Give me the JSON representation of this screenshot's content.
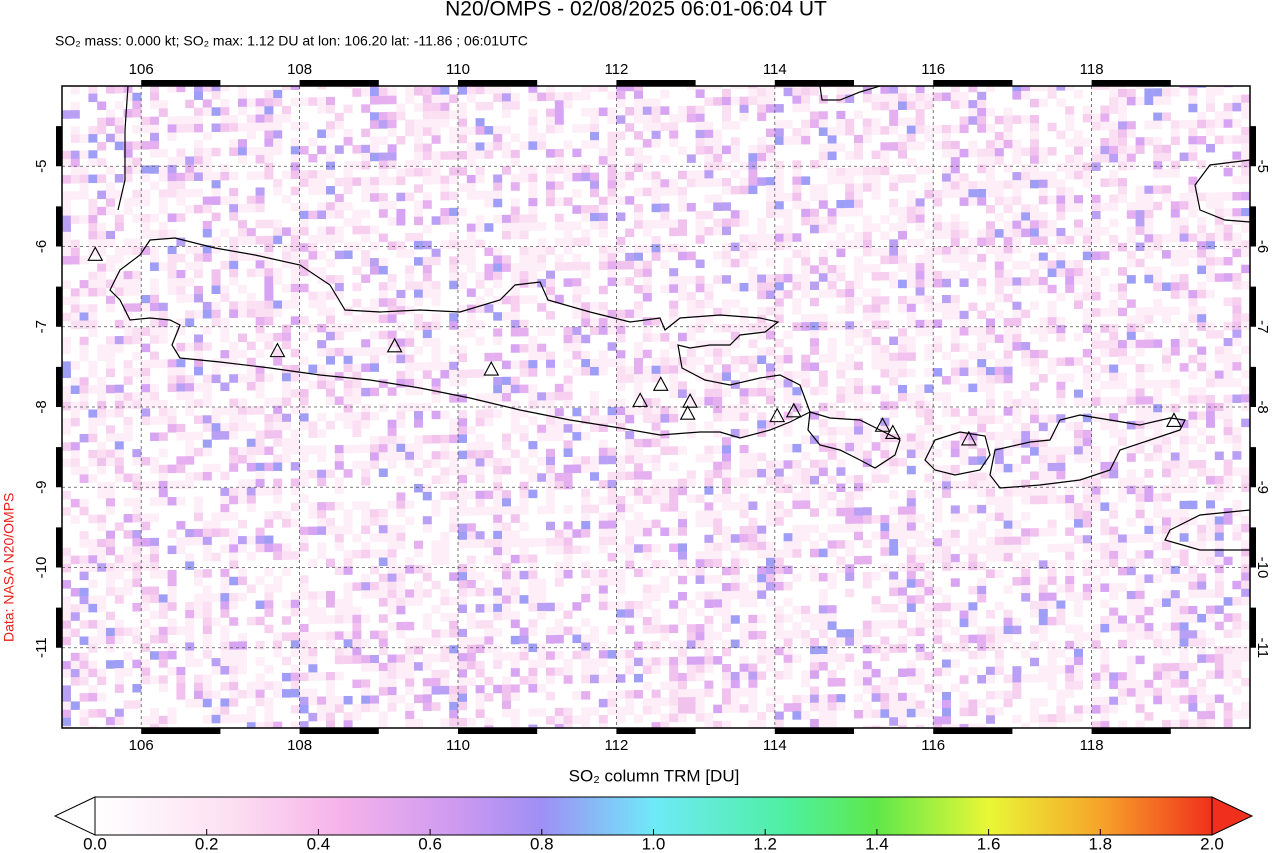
{
  "title": "N20/OMPS - 02/08/2025 06:01-06:04 UT",
  "subtitle": "SO₂ mass: 0.000 kt; SO₂ max: 1.12 DU at lon: 106.20 lat: -11.86 ; 06:01UTC",
  "credit": "Data: NASA N20/OMPS",
  "map": {
    "xlim": [
      105,
      120
    ],
    "ylim": [
      -12,
      -4
    ],
    "xticks": [
      106,
      108,
      110,
      112,
      114,
      116,
      118
    ],
    "yticks": [
      -5,
      -6,
      -7,
      -8,
      -9,
      -10,
      -11
    ],
    "grid": true,
    "volcanoes": [
      [
        107.72,
        -7.31
      ],
      [
        109.2,
        -7.25
      ],
      [
        110.42,
        -7.54
      ],
      [
        112.3,
        -7.93
      ],
      [
        112.56,
        -7.73
      ],
      [
        112.93,
        -7.94
      ],
      [
        112.9,
        -8.09
      ],
      [
        114.03,
        -8.12
      ],
      [
        114.24,
        -8.06
      ],
      [
        115.36,
        -8.24
      ],
      [
        115.49,
        -8.33
      ],
      [
        116.45,
        -8.41
      ],
      [
        119.04,
        -8.18
      ],
      [
        105.42,
        -6.11
      ]
    ]
  },
  "colorbar": {
    "label": "SO₂ column TRM [DU]",
    "lim": [
      0,
      2
    ],
    "ticks": [
      {
        "value": 0,
        "label": "0.0"
      },
      {
        "value": 0.2,
        "label": "0.2"
      },
      {
        "value": 0.4,
        "label": "0.4"
      },
      {
        "value": 0.6,
        "label": "0.6"
      },
      {
        "value": 0.8,
        "label": "0.8"
      },
      {
        "value": 1,
        "label": "1.0"
      },
      {
        "value": 1.2,
        "label": "1.2"
      },
      {
        "value": 1.4,
        "label": "1.4"
      },
      {
        "value": 1.6,
        "label": "1.6"
      },
      {
        "value": 1.8,
        "label": "1.8"
      },
      {
        "value": 2,
        "label": "2.0"
      }
    ]
  }
}
